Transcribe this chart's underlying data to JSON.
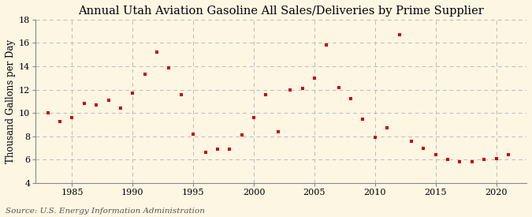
{
  "title": "Annual Utah Aviation Gasoline All Sales/Deliveries by Prime Supplier",
  "ylabel": "Thousand Gallons per Day",
  "source": "Source: U.S. Energy Information Administration",
  "background_color": "#fdf6e3",
  "plot_bg_color": "#fdf6e3",
  "marker_color": "#cc0000",
  "years": [
    1983,
    1984,
    1985,
    1986,
    1987,
    1988,
    1989,
    1990,
    1991,
    1992,
    1993,
    1994,
    1995,
    1996,
    1997,
    1998,
    1999,
    2000,
    2001,
    2002,
    2003,
    2004,
    2005,
    2006,
    2007,
    2008,
    2009,
    2010,
    2011,
    2012,
    2013,
    2014,
    2015,
    2016,
    2017,
    2018,
    2019,
    2020,
    2021
  ],
  "values": [
    10.0,
    9.3,
    9.6,
    10.8,
    10.7,
    11.1,
    10.4,
    11.7,
    13.3,
    15.2,
    13.9,
    11.6,
    8.2,
    6.6,
    6.9,
    6.9,
    8.1,
    9.6,
    11.6,
    8.4,
    12.0,
    12.1,
    13.0,
    15.8,
    12.2,
    11.2,
    9.5,
    7.9,
    8.7,
    16.7,
    7.6,
    7.0,
    6.4,
    6.0,
    5.8,
    5.8,
    6.0,
    6.1,
    6.4
  ],
  "xlim": [
    1982,
    2022.5
  ],
  "ylim": [
    4,
    18
  ],
  "yticks": [
    4,
    6,
    8,
    10,
    12,
    14,
    16,
    18
  ],
  "xticks": [
    1985,
    1990,
    1995,
    2000,
    2005,
    2010,
    2015,
    2020
  ],
  "grid_color": "#bbbbbb",
  "title_fontsize": 10.5,
  "label_fontsize": 8.5,
  "tick_fontsize": 8,
  "source_fontsize": 7.5
}
